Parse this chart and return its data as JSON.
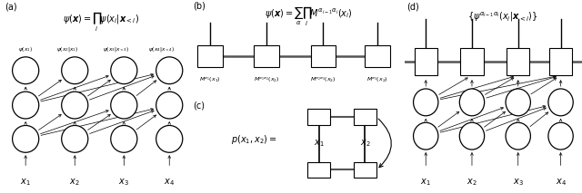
{
  "fig_width": 6.4,
  "fig_height": 2.13,
  "dpi": 100,
  "bg_color": "#ffffff",
  "panel_a": {
    "label": "(a)",
    "formula": "$\\psi(\\boldsymbol{x}) = \\prod_i \\psi(x_i|\\boldsymbol{x}_{<i})$",
    "sublabels": [
      "$\\psi(x_1)$",
      "$\\psi(x_2|x_1)$",
      "$\\psi(x_3|x_{<3})$",
      "$\\psi(x_4|x_{<4})$"
    ],
    "x_labels": [
      "$x_1$",
      "$x_2$",
      "$x_3$",
      "$x_4$"
    ]
  },
  "panel_b": {
    "label": "(b)",
    "formula": "$\\psi(\\boldsymbol{x}) = \\sum_\\alpha \\prod_i M^{\\alpha_{i-1}\\alpha_i}(x_i)$",
    "box_labels": [
      "$M^{\\alpha_1}(x_1)$",
      "$M^{\\alpha_1\\alpha_2}(x_2)$",
      "$M^{\\alpha_2\\alpha_3}(x_2)$",
      "$M^{\\alpha_3}(x_2)$"
    ]
  },
  "panel_c": {
    "label": "(c)",
    "formula": "$p(x_1, x_2) = $",
    "x_labels": [
      "$x_1$",
      "$x_2$"
    ]
  },
  "panel_d": {
    "label": "(d)",
    "formula": "$\\{\\psi^{\\alpha_{i-1}\\alpha_i}(x_i|\\boldsymbol{x}_{<i})\\}$",
    "x_labels": [
      "$x_1$",
      "$x_2$",
      "$x_3$",
      "$x_4$"
    ]
  }
}
